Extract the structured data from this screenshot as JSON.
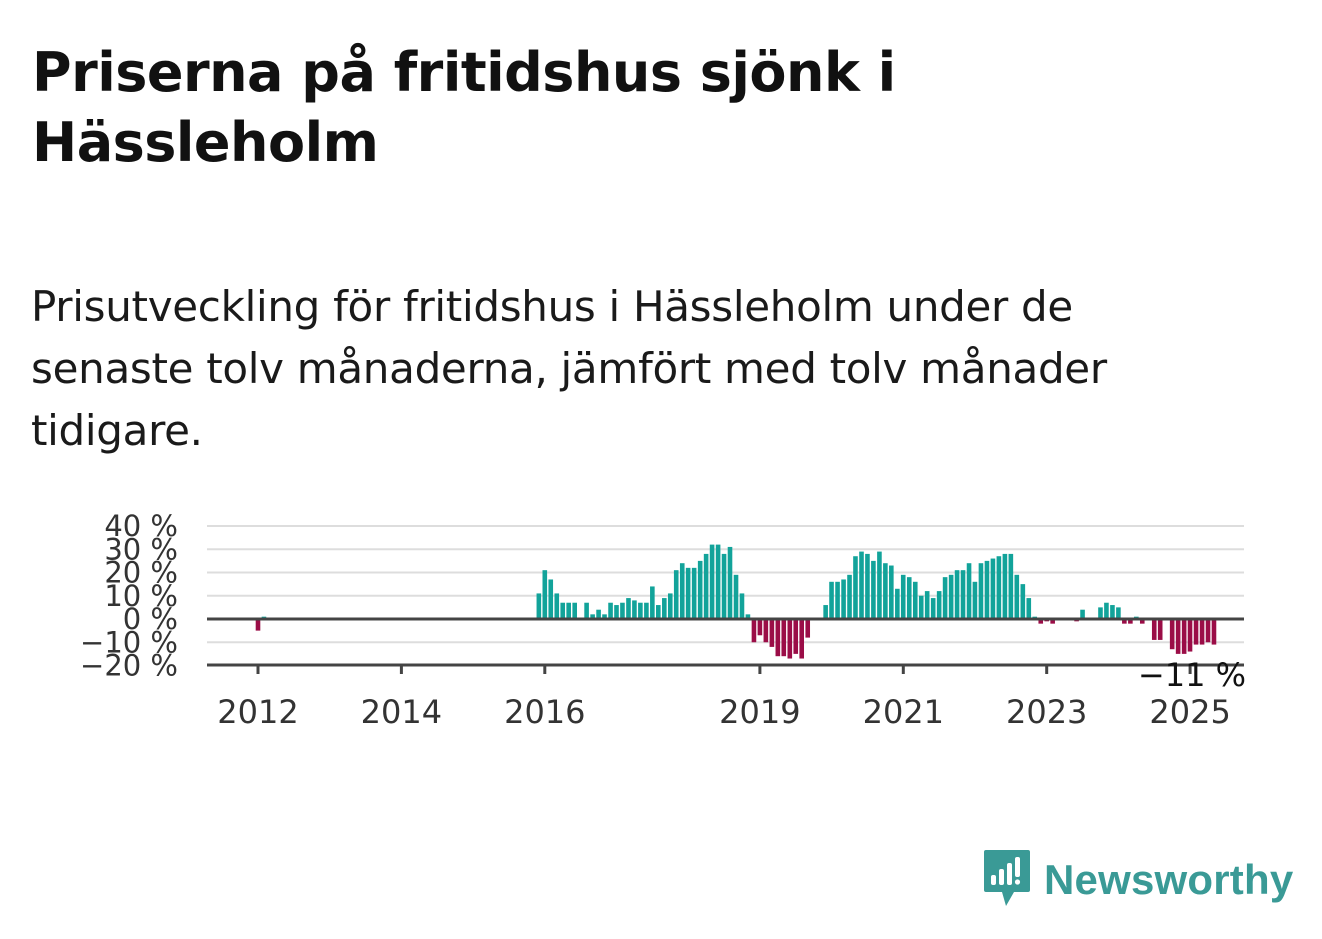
{
  "title": "Priserna på fritidshus sjönk i Hässleholm",
  "subtitle": "Prisutveckling för fritidshus i Hässleholm under de senaste tolv månaderna, jämfört med tolv månader tidigare.",
  "brand": {
    "name": "Newsworthy",
    "icon": "newsworthy-logo-icon",
    "color": "#3a9a96"
  },
  "colors": {
    "positive": "#12a39a",
    "negative": "#9b0d47",
    "zero_line": "#444444",
    "grid": "#dddddd"
  },
  "chart_data": {
    "type": "bar",
    "unit": "%",
    "ylim": [
      -20,
      40
    ],
    "y_ticks": [
      40,
      30,
      20,
      10,
      0,
      -10,
      -20
    ],
    "y_tick_labels": [
      "40 %",
      "30 %",
      "20 %",
      "10 %",
      "0 %",
      "−10 %",
      "−20 %"
    ],
    "x_tick_labels": [
      "2012",
      "2014",
      "2016",
      "2019",
      "2021",
      "2023",
      "2025"
    ],
    "x_tick_years": [
      2012,
      2014,
      2016,
      2019,
      2021,
      2023,
      2025
    ],
    "grid": true,
    "last_value_label": "−11 %",
    "series": [
      {
        "values": [
          [
            2011.917,
            0
          ],
          [
            2012.0,
            -5
          ],
          [
            2012.083,
            1
          ],
          [
            2015.917,
            11
          ],
          [
            2016.0,
            21
          ],
          [
            2016.083,
            17
          ],
          [
            2016.167,
            11
          ],
          [
            2016.25,
            7
          ],
          [
            2016.333,
            7
          ],
          [
            2016.417,
            7
          ],
          [
            2016.5,
            0
          ],
          [
            2016.583,
            7
          ],
          [
            2016.667,
            2
          ],
          [
            2016.75,
            4
          ],
          [
            2016.833,
            2
          ],
          [
            2016.917,
            7
          ],
          [
            2017.0,
            6
          ],
          [
            2017.083,
            7
          ],
          [
            2017.167,
            9
          ],
          [
            2017.25,
            8
          ],
          [
            2017.333,
            7
          ],
          [
            2017.417,
            7
          ],
          [
            2017.5,
            14
          ],
          [
            2017.583,
            6
          ],
          [
            2017.667,
            9
          ],
          [
            2017.75,
            11
          ],
          [
            2017.833,
            21
          ],
          [
            2017.917,
            24
          ],
          [
            2017.999,
            22
          ],
          [
            2018.083,
            22
          ],
          [
            2018.167,
            25
          ],
          [
            2018.25,
            28
          ],
          [
            2018.333,
            32
          ],
          [
            2018.417,
            32
          ],
          [
            2018.5,
            28
          ],
          [
            2018.583,
            31
          ],
          [
            2018.667,
            19
          ],
          [
            2018.75,
            11
          ],
          [
            2018.833,
            2
          ],
          [
            2018.917,
            -10
          ],
          [
            2019.0,
            -7
          ],
          [
            2019.083,
            -10
          ],
          [
            2019.167,
            -12
          ],
          [
            2019.25,
            -16
          ],
          [
            2019.333,
            -16
          ],
          [
            2019.417,
            -17
          ],
          [
            2019.5,
            -15
          ],
          [
            2019.583,
            -17
          ],
          [
            2019.667,
            -8
          ],
          [
            2019.917,
            6
          ],
          [
            2019.999,
            16
          ],
          [
            2020.083,
            16
          ],
          [
            2020.167,
            17
          ],
          [
            2020.25,
            19
          ],
          [
            2020.333,
            27
          ],
          [
            2020.417,
            29
          ],
          [
            2020.5,
            28
          ],
          [
            2020.583,
            25
          ],
          [
            2020.667,
            29
          ],
          [
            2020.75,
            24
          ],
          [
            2020.833,
            23
          ],
          [
            2020.917,
            13
          ],
          [
            2020.999,
            19
          ],
          [
            2021.083,
            18
          ],
          [
            2021.167,
            16
          ],
          [
            2021.25,
            10
          ],
          [
            2021.333,
            12
          ],
          [
            2021.417,
            9
          ],
          [
            2021.5,
            12
          ],
          [
            2021.583,
            18
          ],
          [
            2021.667,
            19
          ],
          [
            2021.75,
            21
          ],
          [
            2021.833,
            21
          ],
          [
            2021.917,
            24
          ],
          [
            2021.999,
            16
          ],
          [
            2022.083,
            24
          ],
          [
            2022.167,
            25
          ],
          [
            2022.25,
            26
          ],
          [
            2022.333,
            27
          ],
          [
            2022.417,
            28
          ],
          [
            2022.5,
            28
          ],
          [
            2022.583,
            19
          ],
          [
            2022.667,
            15
          ],
          [
            2022.75,
            9
          ],
          [
            2022.833,
            1
          ],
          [
            2022.917,
            -2
          ],
          [
            2023.0,
            -1
          ],
          [
            2023.083,
            -2
          ],
          [
            2023.167,
            0
          ],
          [
            2023.333,
            0
          ],
          [
            2023.417,
            -1
          ],
          [
            2023.5,
            4
          ],
          [
            2023.583,
            0
          ],
          [
            2023.75,
            5
          ],
          [
            2023.833,
            7
          ],
          [
            2023.917,
            6
          ],
          [
            2024.0,
            5
          ],
          [
            2024.083,
            -2
          ],
          [
            2024.167,
            -2
          ],
          [
            2024.25,
            1
          ],
          [
            2024.333,
            -2
          ],
          [
            2024.5,
            -9
          ],
          [
            2024.583,
            -9
          ],
          [
            2024.667,
            0
          ],
          [
            2024.75,
            -13
          ],
          [
            2024.833,
            -15
          ],
          [
            2024.917,
            -15
          ],
          [
            2024.999,
            -14
          ],
          [
            2025.083,
            -11
          ],
          [
            2025.167,
            -11
          ],
          [
            2025.25,
            -10
          ],
          [
            2025.333,
            -11
          ]
        ]
      }
    ]
  }
}
